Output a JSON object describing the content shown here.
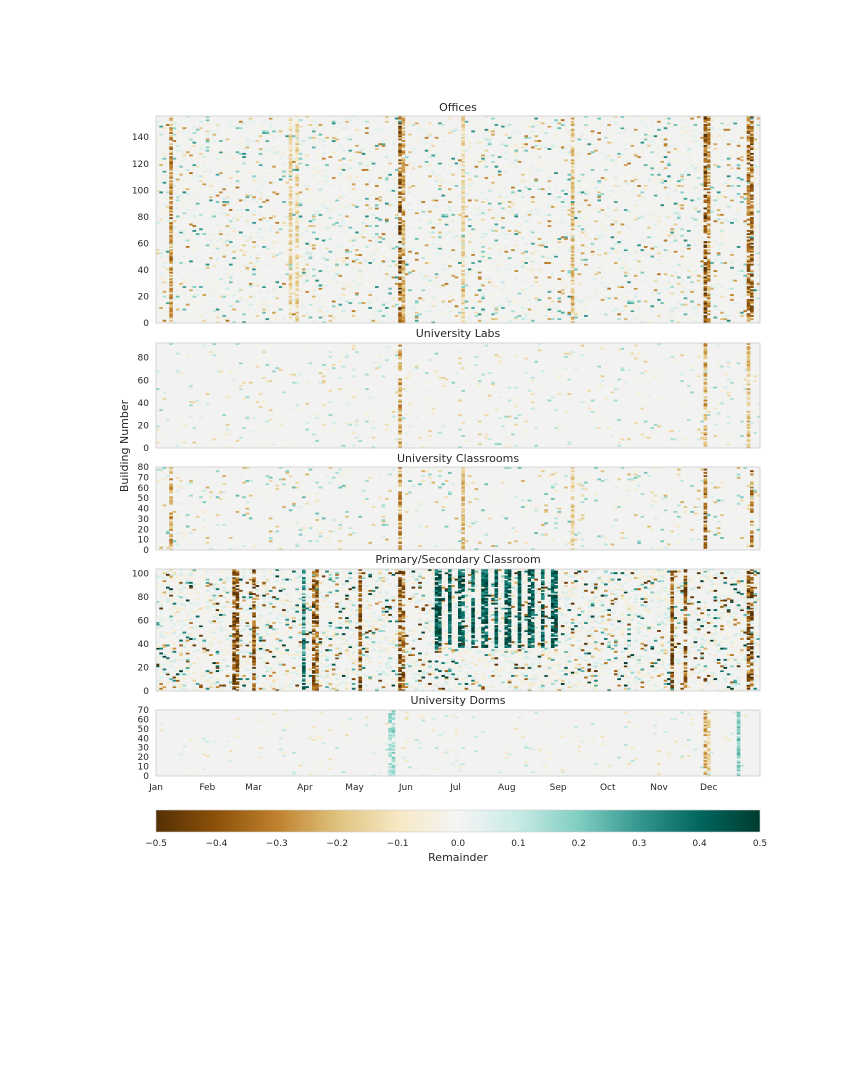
{
  "chart_data": {
    "type": "heatmap",
    "ylabel": "Building Number",
    "colorbar": {
      "label": "Remainder",
      "vmin": -0.5,
      "vmax": 0.5,
      "ticks": [
        "−0.5",
        "−0.4",
        "−0.3",
        "−0.2",
        "−0.1",
        "0.0",
        "0.1",
        "0.2",
        "0.3",
        "0.4",
        "0.5"
      ],
      "colormap": "BrBG",
      "colors": [
        "#543005",
        "#8c510a",
        "#bf812d",
        "#dfc27d",
        "#f6e8c3",
        "#f5f5f5",
        "#c7eae5",
        "#80cdc1",
        "#35978f",
        "#01665e",
        "#003c30"
      ]
    },
    "xaxis": {
      "ticks": [
        "Jan",
        "Feb",
        "Mar",
        "Apr",
        "May",
        "Jun",
        "Jul",
        "Aug",
        "Sep",
        "Oct",
        "Nov",
        "Dec"
      ],
      "days_in_year": 365
    },
    "panels": [
      {
        "title": "Offices",
        "n_buildings": 156,
        "yticks": [
          0,
          20,
          40,
          60,
          80,
          100,
          120,
          140
        ],
        "intensity": 0.55,
        "holiday_columns": [
          {
            "day": 9,
            "value": -0.35
          },
          {
            "day": 81,
            "value": -0.2
          },
          {
            "day": 84,
            "value": -0.2
          },
          {
            "day": 147,
            "value": -0.5
          },
          {
            "day": 148,
            "value": -0.3
          },
          {
            "day": 185,
            "value": -0.2
          },
          {
            "day": 251,
            "value": -0.25
          },
          {
            "day": 331,
            "value": -0.5
          },
          {
            "day": 332,
            "value": -0.35
          },
          {
            "day": 357,
            "value": -0.4
          },
          {
            "day": 359,
            "value": -0.45
          }
        ]
      },
      {
        "title": "University Labs",
        "n_buildings": 93,
        "yticks": [
          0,
          20,
          40,
          60,
          80
        ],
        "intensity": 0.3,
        "holiday_columns": [
          {
            "day": 147,
            "value": -0.3
          },
          {
            "day": 331,
            "value": -0.3
          },
          {
            "day": 357,
            "value": -0.25
          }
        ]
      },
      {
        "title": "University Classrooms",
        "n_buildings": 80,
        "yticks": [
          0,
          10,
          20,
          30,
          40,
          50,
          60,
          70,
          80
        ],
        "intensity": 0.4,
        "holiday_columns": [
          {
            "day": 9,
            "value": -0.3
          },
          {
            "day": 147,
            "value": -0.35
          },
          {
            "day": 185,
            "value": -0.25
          },
          {
            "day": 251,
            "value": -0.2
          },
          {
            "day": 331,
            "value": -0.45
          },
          {
            "day": 358,
            "value": -0.4
          }
        ]
      },
      {
        "title": "Primary/Secondary Classroom",
        "n_buildings": 104,
        "yticks": [
          0,
          20,
          40,
          60,
          80,
          100
        ],
        "intensity": 0.9,
        "holiday_columns": [
          {
            "day": 47,
            "value": -0.5
          },
          {
            "day": 48,
            "value": -0.5
          },
          {
            "day": 49,
            "value": -0.5
          },
          {
            "day": 59,
            "value": -0.5
          },
          {
            "day": 88,
            "value": 0.45
          },
          {
            "day": 95,
            "value": -0.5
          },
          {
            "day": 96,
            "value": -0.45
          },
          {
            "day": 122,
            "value": -0.5
          },
          {
            "day": 146,
            "value": -0.5
          },
          {
            "day": 147,
            "value": -0.5
          },
          {
            "day": 148,
            "value": -0.45
          },
          {
            "day": 310,
            "value": -0.5
          },
          {
            "day": 311,
            "value": -0.5
          },
          {
            "day": 319,
            "value": -0.5
          },
          {
            "day": 357,
            "value": -0.5
          },
          {
            "day": 358,
            "value": -0.5
          }
        ],
        "summer_band": {
          "start_day": 168,
          "end_day": 245,
          "value": 0.5,
          "period": 7
        }
      },
      {
        "title": "University Dorms",
        "n_buildings": 70,
        "yticks": [
          0,
          10,
          20,
          30,
          40,
          50,
          60,
          70
        ],
        "intensity": 0.22,
        "holiday_columns": [
          {
            "day": 140,
            "value": 0.2
          },
          {
            "day": 142,
            "value": 0.2
          },
          {
            "day": 331,
            "value": -0.3
          },
          {
            "day": 332,
            "value": -0.2
          },
          {
            "day": 350,
            "value": 0.25
          }
        ]
      }
    ]
  }
}
